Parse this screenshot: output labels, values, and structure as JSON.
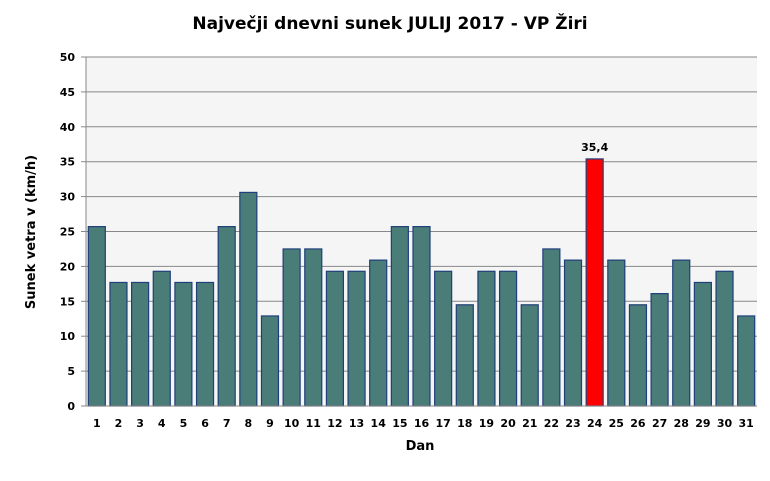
{
  "chart_data": {
    "type": "bar",
    "title": "Največji dnevni sunek JULIJ 2017 - VP Žiri",
    "xlabel": "Dan",
    "ylabel": "Sunek vetra v (km/h)",
    "ylim": [
      0,
      50
    ],
    "yticks": [
      0,
      5,
      10,
      15,
      20,
      25,
      30,
      35,
      40,
      45,
      50
    ],
    "grid": true,
    "categories": [
      "1",
      "2",
      "3",
      "4",
      "5",
      "6",
      "7",
      "8",
      "9",
      "10",
      "11",
      "12",
      "13",
      "14",
      "15",
      "16",
      "17",
      "18",
      "19",
      "20",
      "21",
      "22",
      "23",
      "24",
      "25",
      "26",
      "27",
      "28",
      "29",
      "30",
      "31"
    ],
    "values": [
      25.7,
      17.7,
      17.7,
      19.3,
      17.7,
      17.7,
      25.7,
      30.6,
      12.9,
      22.5,
      22.5,
      19.3,
      19.3,
      20.9,
      25.7,
      25.7,
      19.3,
      14.5,
      19.3,
      19.3,
      14.5,
      22.5,
      20.9,
      35.4,
      20.9,
      14.5,
      16.1,
      20.9,
      17.7,
      19.3,
      12.9
    ],
    "highlight": {
      "index": 23,
      "label": "35,4",
      "color": "#ff0000"
    },
    "bar_color": "#4a7c78",
    "bar_edge_color": "#1f3f7a",
    "plot_background": "#f5f5f5"
  }
}
